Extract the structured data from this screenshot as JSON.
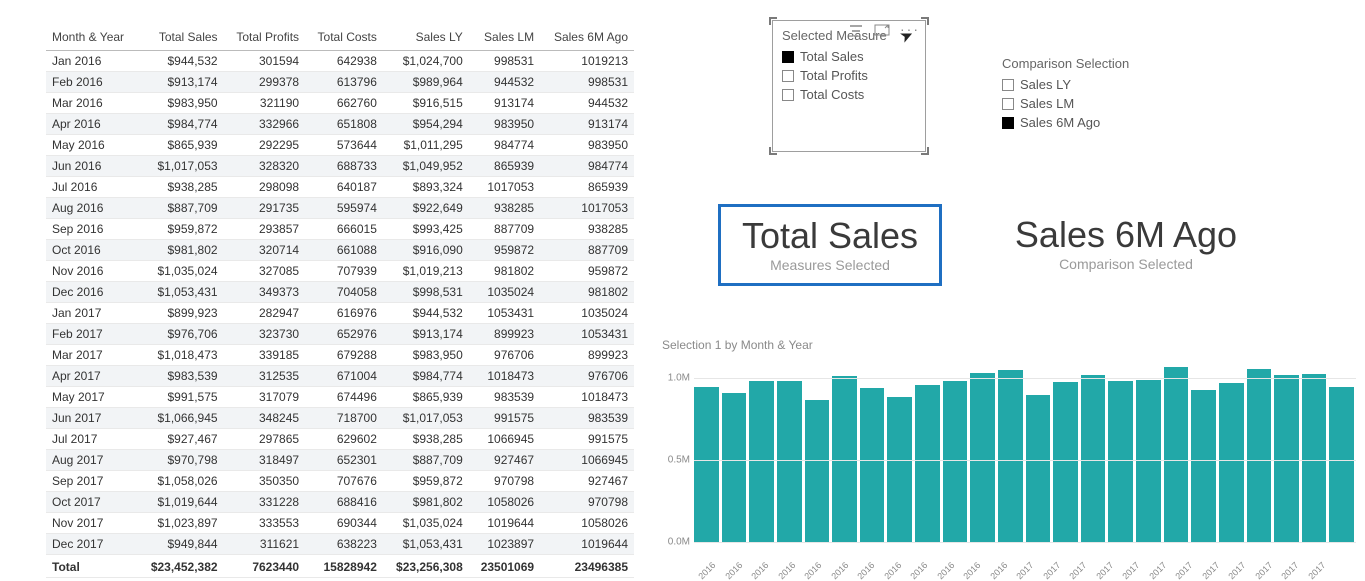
{
  "colors": {
    "bar": "#22a8a8",
    "grid": "#e6e6e6",
    "axis_text": "#8a8a8a",
    "selection_border": "#1f6fc2"
  },
  "table": {
    "columns": [
      "Month & Year",
      "Total Sales",
      "Total Profits",
      "Total Costs",
      "Sales LY",
      "Sales LM",
      "Sales 6M Ago"
    ],
    "col_align": [
      "left",
      "right",
      "right",
      "right",
      "right",
      "right",
      "right"
    ],
    "rows": [
      [
        "Jan 2016",
        "$944,532",
        "301594",
        "642938",
        "$1,024,700",
        "998531",
        "1019213"
      ],
      [
        "Feb 2016",
        "$913,174",
        "299378",
        "613796",
        "$989,964",
        "944532",
        "998531"
      ],
      [
        "Mar 2016",
        "$983,950",
        "321190",
        "662760",
        "$916,515",
        "913174",
        "944532"
      ],
      [
        "Apr 2016",
        "$984,774",
        "332966",
        "651808",
        "$954,294",
        "983950",
        "913174"
      ],
      [
        "May 2016",
        "$865,939",
        "292295",
        "573644",
        "$1,011,295",
        "984774",
        "983950"
      ],
      [
        "Jun 2016",
        "$1,017,053",
        "328320",
        "688733",
        "$1,049,952",
        "865939",
        "984774"
      ],
      [
        "Jul 2016",
        "$938,285",
        "298098",
        "640187",
        "$893,324",
        "1017053",
        "865939"
      ],
      [
        "Aug 2016",
        "$887,709",
        "291735",
        "595974",
        "$922,649",
        "938285",
        "1017053"
      ],
      [
        "Sep 2016",
        "$959,872",
        "293857",
        "666015",
        "$993,425",
        "887709",
        "938285"
      ],
      [
        "Oct 2016",
        "$981,802",
        "320714",
        "661088",
        "$916,090",
        "959872",
        "887709"
      ],
      [
        "Nov 2016",
        "$1,035,024",
        "327085",
        "707939",
        "$1,019,213",
        "981802",
        "959872"
      ],
      [
        "Dec 2016",
        "$1,053,431",
        "349373",
        "704058",
        "$998,531",
        "1035024",
        "981802"
      ],
      [
        "Jan 2017",
        "$899,923",
        "282947",
        "616976",
        "$944,532",
        "1053431",
        "1035024"
      ],
      [
        "Feb 2017",
        "$976,706",
        "323730",
        "652976",
        "$913,174",
        "899923",
        "1053431"
      ],
      [
        "Mar 2017",
        "$1,018,473",
        "339185",
        "679288",
        "$983,950",
        "976706",
        "899923"
      ],
      [
        "Apr 2017",
        "$983,539",
        "312535",
        "671004",
        "$984,774",
        "1018473",
        "976706"
      ],
      [
        "May 2017",
        "$991,575",
        "317079",
        "674496",
        "$865,939",
        "983539",
        "1018473"
      ],
      [
        "Jun 2017",
        "$1,066,945",
        "348245",
        "718700",
        "$1,017,053",
        "991575",
        "983539"
      ],
      [
        "Jul 2017",
        "$927,467",
        "297865",
        "629602",
        "$938,285",
        "1066945",
        "991575"
      ],
      [
        "Aug 2017",
        "$970,798",
        "318497",
        "652301",
        "$887,709",
        "927467",
        "1066945"
      ],
      [
        "Sep 2017",
        "$1,058,026",
        "350350",
        "707676",
        "$959,872",
        "970798",
        "927467"
      ],
      [
        "Oct 2017",
        "$1,019,644",
        "331228",
        "688416",
        "$981,802",
        "1058026",
        "970798"
      ],
      [
        "Nov 2017",
        "$1,023,897",
        "333553",
        "690344",
        "$1,035,024",
        "1019644",
        "1058026"
      ],
      [
        "Dec 2017",
        "$949,844",
        "311621",
        "638223",
        "$1,053,431",
        "1023897",
        "1019644"
      ]
    ],
    "total_row": [
      "Total",
      "$23,452,382",
      "7623440",
      "15828942",
      "$23,256,308",
      "23501069",
      "23496385"
    ]
  },
  "slicers": {
    "selected_measure": {
      "title": "Selected Measure",
      "options": [
        {
          "label": "Total Sales",
          "checked": true
        },
        {
          "label": "Total Profits",
          "checked": false
        },
        {
          "label": "Total Costs",
          "checked": false
        }
      ]
    },
    "comparison": {
      "title": "Comparison Selection",
      "options": [
        {
          "label": "Sales LY",
          "checked": false
        },
        {
          "label": "Sales LM",
          "checked": false
        },
        {
          "label": "Sales 6M Ago",
          "checked": true
        }
      ]
    }
  },
  "cards": {
    "measures": {
      "value": "Total Sales",
      "label": "Measures Selected"
    },
    "comparison": {
      "value": "Sales 6M Ago",
      "label": "Comparison Selected"
    }
  },
  "chart": {
    "title": "Selection 1 by Month & Year",
    "type": "bar",
    "bar_color": "#22a8a8",
    "y_ticks": [
      {
        "label": "1.0M",
        "value": 1000000
      },
      {
        "label": "0.5M",
        "value": 500000
      },
      {
        "label": "0.0M",
        "value": 0
      }
    ],
    "ymax": 1100000,
    "categories": [
      "2016",
      "2016",
      "2016",
      "2016",
      "2016",
      "2016",
      "2016",
      "2016",
      "2016",
      "2016",
      "2016",
      "2016",
      "2017",
      "2017",
      "2017",
      "2017",
      "2017",
      "2017",
      "2017",
      "2017",
      "2017",
      "2017",
      "2017",
      "2017"
    ],
    "values": [
      944532,
      913174,
      983950,
      984774,
      865939,
      1017053,
      938285,
      887709,
      959872,
      981802,
      1035024,
      1053431,
      899923,
      976706,
      1018473,
      983539,
      991575,
      1066945,
      927467,
      970798,
      1058026,
      1019644,
      1023897,
      949844
    ]
  }
}
